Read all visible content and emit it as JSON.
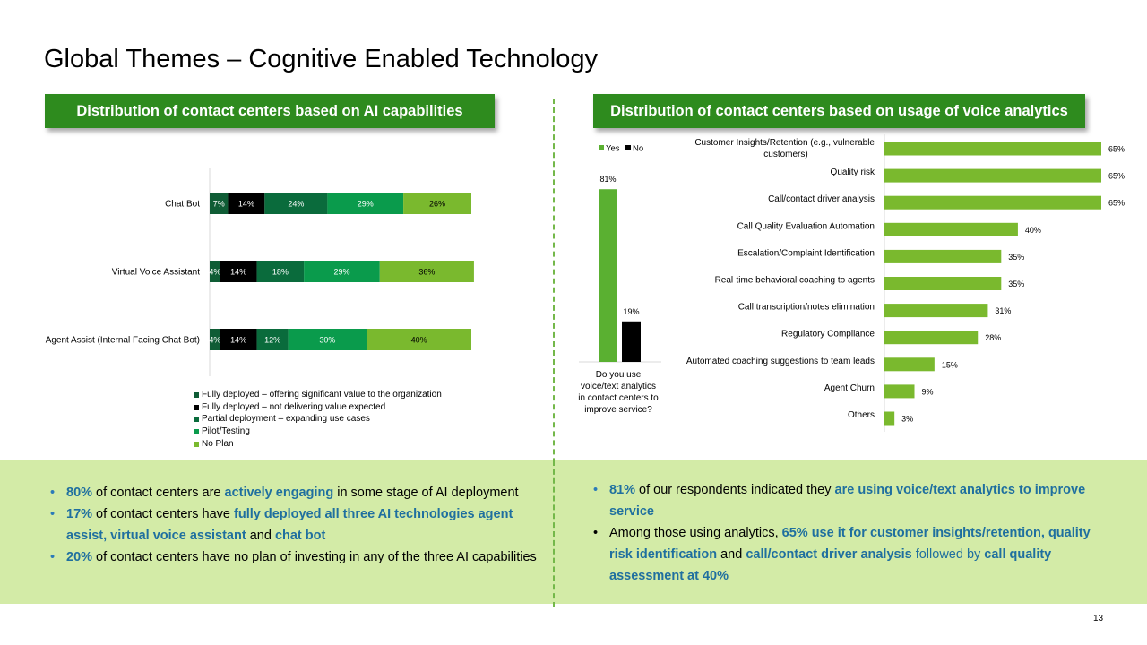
{
  "slide_title": "Global Themes – Cognitive Enabled Technology",
  "left_panel": {
    "header": "Distribution of contact centers based on AI capabilities",
    "legend": [
      {
        "label": "Fully deployed – offering significant value to the organization",
        "color": "#0f5c35"
      },
      {
        "label": "Fully deployed – not delivering value expected",
        "color": "#000000"
      },
      {
        "label": "Partial deployment – expanding use cases",
        "color": "#0a6b3c"
      },
      {
        "label": "Pilot/Testing",
        "color": "#0a9b4c"
      },
      {
        "label": "No Plan",
        "color": "#7ab92e"
      }
    ]
  },
  "right_panel": {
    "header": "Distribution of contact centers based on usage of voice analytics"
  },
  "chart_data": [
    {
      "type": "bar",
      "orientation": "horizontal",
      "stacked": true,
      "categories": [
        "Chat Bot",
        "Virtual Voice Assistant",
        "Agent Assist (Internal Facing Chat Bot)"
      ],
      "series": [
        {
          "name": "Fully deployed – offering significant value to the organization",
          "values": [
            7,
            4,
            4
          ],
          "labels": [
            "7%",
            "4%",
            "4%"
          ],
          "color": "#0f5c35",
          "label_color": "#ffffff"
        },
        {
          "name": "Fully deployed – not delivering value expected",
          "values": [
            14,
            14,
            14
          ],
          "labels": [
            "14%",
            "14%",
            "14%"
          ],
          "color": "#000000",
          "label_color": "#ffffff"
        },
        {
          "name": "Partial deployment – expanding use cases",
          "values": [
            24,
            18,
            12
          ],
          "labels": [
            "24%",
            "18%",
            "12%"
          ],
          "color": "#0a6b3c",
          "label_color": "#ffffff"
        },
        {
          "name": "Pilot/Testing",
          "values": [
            29,
            29,
            30
          ],
          "labels": [
            "29%",
            "29%",
            "30%"
          ],
          "color": "#0a9b4c",
          "label_color": "#ffffff"
        },
        {
          "name": "No Plan",
          "values": [
            26,
            36,
            40
          ],
          "labels": [
            "26%",
            "36%",
            "40%"
          ],
          "color": "#7ab92e",
          "label_color": "#000000"
        }
      ]
    },
    {
      "type": "bar",
      "categories": [
        "Do you use voice/text analytics in contact centers to improve service?"
      ],
      "category_lines": [
        "Do you use",
        "voice/text analytics",
        "in contact centers to",
        "improve service?"
      ],
      "series": [
        {
          "name": "Yes",
          "values": [
            81
          ],
          "labels": [
            "81%"
          ],
          "color": "#5ab031"
        },
        {
          "name": "No",
          "values": [
            19
          ],
          "labels": [
            "19%"
          ],
          "color": "#000000"
        }
      ],
      "ylim": [
        0,
        100
      ]
    },
    {
      "type": "bar",
      "orientation": "horizontal",
      "categories": [
        [
          "Customer Insights/Retention (e.g., vulnerable",
          "customers)"
        ],
        [
          "Quality risk"
        ],
        [
          "Call/contact driver analysis"
        ],
        [
          "Call Quality Evaluation Automation"
        ],
        [
          "Escalation/Complaint Identification"
        ],
        [
          "Real-time behavioral coaching to agents"
        ],
        [
          "Call transcription/notes elimination"
        ],
        [
          "Regulatory Compliance"
        ],
        [
          "Automated coaching suggestions to team leads"
        ],
        [
          "Agent Churn"
        ],
        [
          "Others"
        ]
      ],
      "values": [
        65,
        65,
        65,
        40,
        35,
        35,
        31,
        28,
        15,
        9,
        3
      ],
      "labels": [
        "65%",
        "65%",
        "65%",
        "40%",
        "35%",
        "35%",
        "31%",
        "28%",
        "15%",
        "9%",
        "3%"
      ],
      "color": "#7ab92e",
      "xlim": [
        0,
        65
      ]
    }
  ],
  "bottom_left_bullets": [
    [
      {
        "t": "80%",
        "s": "hl"
      },
      {
        "t": " of contact centers are ",
        "s": ""
      },
      {
        "t": "actively engaging",
        "s": "hl"
      },
      {
        "t": " in some stage of AI deployment",
        "s": ""
      }
    ],
    [
      {
        "t": "17%",
        "s": "hl"
      },
      {
        "t": " of contact centers have ",
        "s": ""
      },
      {
        "t": "fully deployed all three AI technologies agent assist, virtual voice assistant",
        "s": "hl"
      },
      {
        "t": " and ",
        "s": ""
      },
      {
        "t": "chat bot",
        "s": "hl"
      }
    ],
    [
      {
        "t": "20%",
        "s": "hl"
      },
      {
        "t": " of contact centers have no plan of investing in any of the three AI capabilities",
        "s": ""
      }
    ]
  ],
  "bottom_right_bullets": [
    [
      {
        "t": "81%",
        "s": "hl"
      },
      {
        "t": " of our respondents indicated they ",
        "s": ""
      },
      {
        "t": "are using voice/text analytics to improve service",
        "s": "hl"
      }
    ],
    [
      {
        "t": "Among those using analytics, ",
        "s": ""
      },
      {
        "t": "65% use it for customer insights/retention, quality risk identification",
        "s": "hl"
      },
      {
        "t": " and ",
        "s": ""
      },
      {
        "t": "call/contact driver analysis",
        "s": "hl"
      },
      {
        "t": " followed by ",
        "s": "blue"
      },
      {
        "t": "call quality assessment at 40%",
        "s": "hl"
      }
    ]
  ],
  "bullet_colors": {
    "left": "#2b7bb9",
    "right_first": "#2b7bb9",
    "right_second": "#000000"
  },
  "page_number": "13"
}
